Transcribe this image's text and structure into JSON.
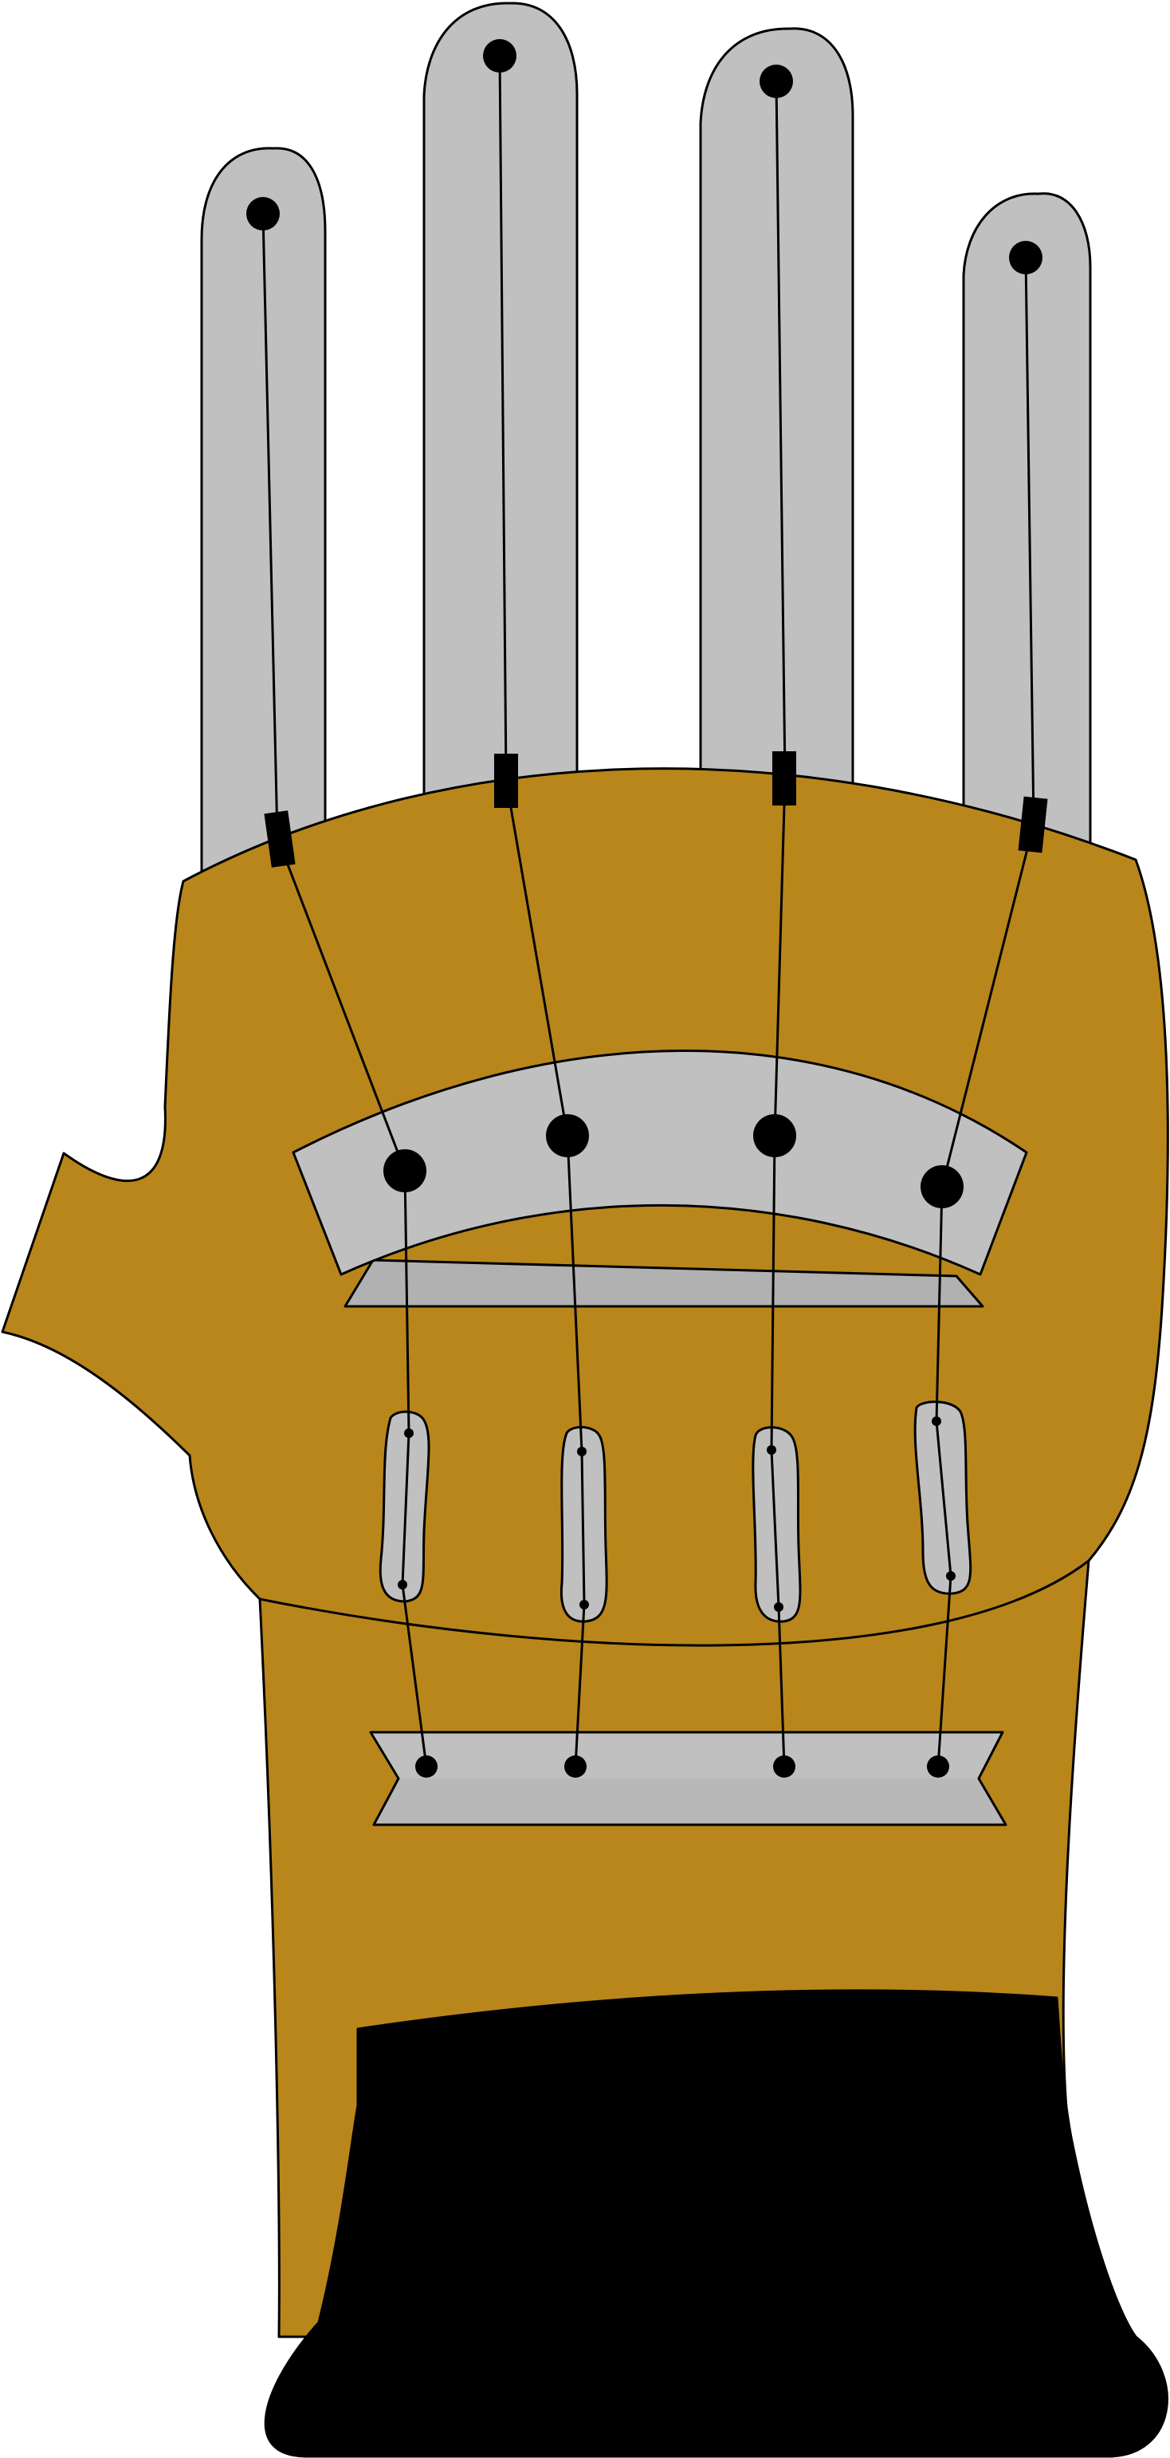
{
  "colors": {
    "glove": "#B8861B",
    "finger": "#C0C0C0",
    "plate_light": "#C0C0C0",
    "plate_dark": "#B1B1B1",
    "cuff": "#000000",
    "background": "#FFFFFF",
    "line": "#000000"
  },
  "fingers": [
    {
      "name": "index-finger"
    },
    {
      "name": "middle-finger"
    },
    {
      "name": "ring-finger"
    },
    {
      "name": "little-finger"
    }
  ],
  "cables": [
    {
      "name": "index-cable"
    },
    {
      "name": "middle-cable"
    },
    {
      "name": "ring-cable"
    },
    {
      "name": "little-cable"
    }
  ]
}
